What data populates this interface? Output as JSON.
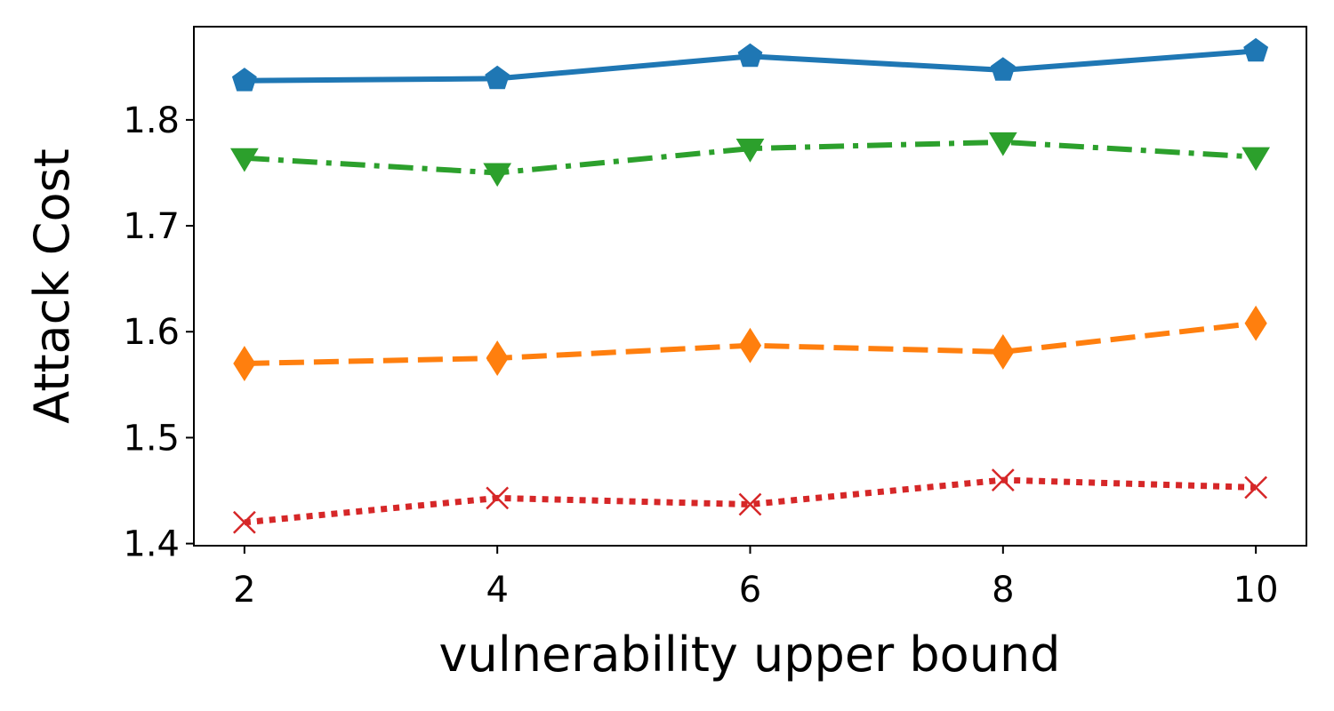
{
  "chart_data": {
    "type": "line",
    "title": "",
    "xlabel": "vulnerability upper bound",
    "ylabel": "Attack Cost",
    "x": [
      2,
      4,
      6,
      8,
      10
    ],
    "xlim": [
      1.6,
      10.4
    ],
    "ylim": [
      1.398,
      1.888
    ],
    "xticks": [
      2,
      4,
      6,
      8,
      10
    ],
    "yticks": [
      1.4,
      1.5,
      1.6,
      1.7,
      1.8
    ],
    "xtick_labels": [
      "2",
      "4",
      "6",
      "8",
      "10"
    ],
    "ytick_labels": [
      "1.4",
      "1.5",
      "1.6",
      "1.7",
      "1.8"
    ],
    "grid": false,
    "legend": "none",
    "series": [
      {
        "values": [
          1.837,
          1.839,
          1.86,
          1.847,
          1.865
        ],
        "color": "#1f77b4",
        "line_style": "solid",
        "marker": "pentagon"
      },
      {
        "values": [
          1.764,
          1.75,
          1.773,
          1.779,
          1.765
        ],
        "color": "#2ca02c",
        "line_style": "dashdot",
        "marker": "triangle-down"
      },
      {
        "values": [
          1.57,
          1.575,
          1.587,
          1.581,
          1.608
        ],
        "color": "#ff7f0e",
        "line_style": "dashed",
        "marker": "thin-diamond"
      },
      {
        "values": [
          1.42,
          1.443,
          1.437,
          1.46,
          1.453
        ],
        "color": "#d62728",
        "line_style": "dotted",
        "marker": "x"
      }
    ]
  }
}
